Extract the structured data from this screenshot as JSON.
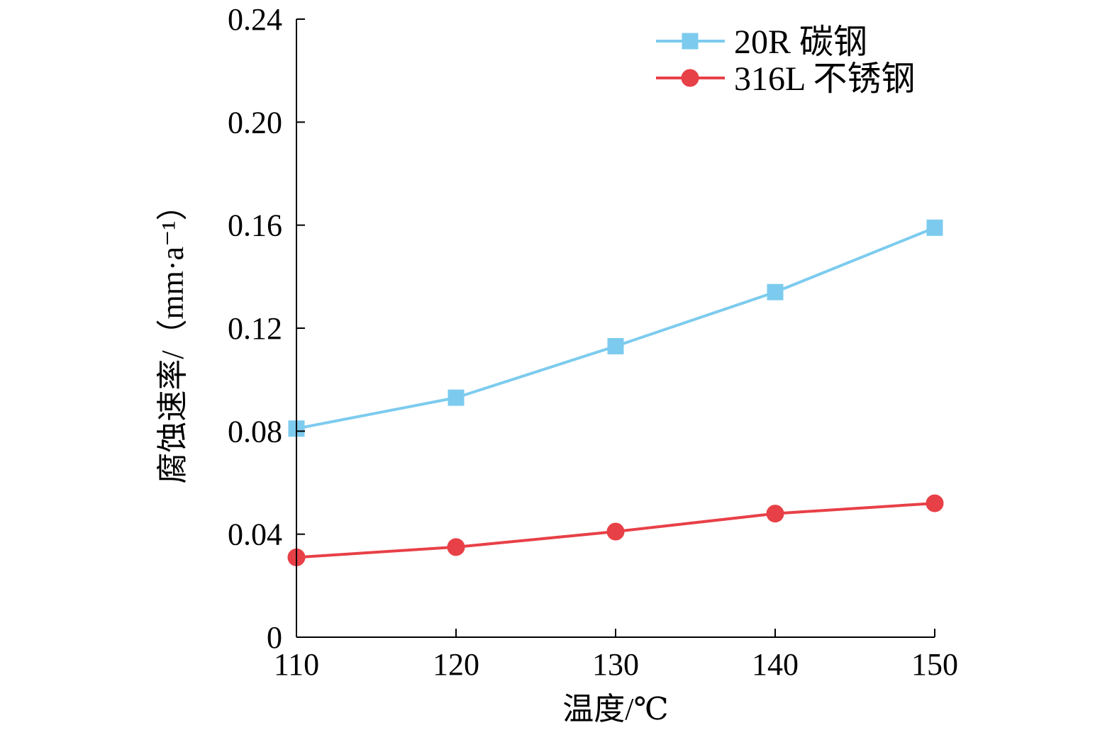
{
  "chart_data": {
    "type": "line",
    "title": "",
    "xlabel": "温度/℃",
    "ylabel": "腐蚀速率/（mm·a⁻¹）",
    "x": [
      110,
      120,
      130,
      140,
      150
    ],
    "xlim": [
      110,
      150
    ],
    "ylim": [
      0,
      0.24
    ],
    "x_ticks": [
      "110",
      "120",
      "130",
      "140",
      "150"
    ],
    "y_ticks": [
      "0",
      "0.04",
      "0.08",
      "0.12",
      "0.16",
      "0.20",
      "0.24"
    ],
    "series": [
      {
        "name": "20R 碳钢",
        "marker": "square",
        "color": "#7ccbee",
        "values": [
          0.081,
          0.093,
          0.113,
          0.134,
          0.159
        ]
      },
      {
        "name": "316L 不锈钢",
        "marker": "circle",
        "color": "#e84047",
        "values": [
          0.031,
          0.035,
          0.041,
          0.048,
          0.052
        ]
      }
    ],
    "legend_position": "top-right",
    "grid": false
  }
}
